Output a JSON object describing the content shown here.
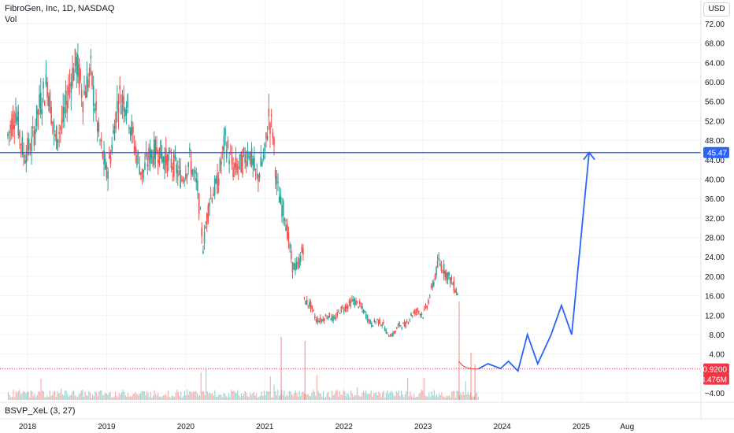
{
  "header": {
    "symbol_line": "FibroGen, Inc, 1D, NASDAQ",
    "volume_label": "Vol",
    "currency": "USD"
  },
  "indicator": {
    "label": "BSVP_XeL (3, 27)"
  },
  "colors": {
    "up": "#26a69a",
    "down": "#ef5350",
    "projection": "#2962ff",
    "hline": "#2962ff",
    "last_price": "#f23645",
    "grid": "#f0f3fa",
    "axis_text": "#131722"
  },
  "chart_data": {
    "type": "line",
    "title": "FibroGen, Inc, 1D, NASDAQ",
    "y_axis_ticks": [
      "72.00",
      "68.00",
      "64.00",
      "60.00",
      "56.00",
      "52.00",
      "48.00",
      "44.00",
      "40.00",
      "36.00",
      "32.00",
      "28.00",
      "24.00",
      "20.00",
      "16.00",
      "12.00",
      "8.00",
      "4.00",
      "−4.00"
    ],
    "y_axis_tick_values": [
      72,
      68,
      64,
      60,
      56,
      52,
      48,
      44,
      40,
      36,
      32,
      28,
      24,
      20,
      16,
      12,
      8,
      4,
      -4
    ],
    "x_axis_ticks": [
      "2018",
      "2019",
      "2020",
      "2021",
      "2022",
      "2023",
      "2024",
      "2025",
      "Aug"
    ],
    "x_axis_tick_values": [
      2018.0,
      2019.0,
      2020.0,
      2021.0,
      2022.0,
      2023.0,
      2024.0,
      2025.0,
      2025.58
    ],
    "ylim": [
      -4,
      74
    ],
    "xlim": [
      2017.75,
      2026.5
    ],
    "price_series": {
      "name": "",
      "x": [
        2017.75,
        2017.85,
        2017.95,
        2018.05,
        2018.15,
        2018.25,
        2018.35,
        2018.45,
        2018.55,
        2018.62,
        2018.7,
        2018.8,
        2018.9,
        2019.0,
        2019.05,
        2019.15,
        2019.25,
        2019.35,
        2019.45,
        2019.55,
        2019.65,
        2019.75,
        2019.85,
        2019.95,
        2020.05,
        2020.15,
        2020.22,
        2020.3,
        2020.4,
        2020.5,
        2020.6,
        2020.7,
        2020.8,
        2020.9,
        2021.0,
        2021.05,
        2021.1,
        2021.15,
        2021.2,
        2021.25,
        2021.35,
        2021.42,
        2021.5
      ],
      "y": [
        49,
        54,
        45,
        47,
        55,
        60,
        48,
        52,
        61,
        64,
        57,
        62,
        49,
        41,
        45,
        57,
        56,
        47,
        41,
        45,
        46,
        44,
        43,
        40,
        44,
        38,
        26,
        36,
        39,
        48,
        42,
        43,
        46,
        40,
        45,
        53,
        50,
        39,
        35,
        33,
        22,
        22,
        27
      ]
    },
    "price_series_2": {
      "x": [
        2022.5,
        2022.55,
        2022.62,
        2022.7,
        2022.78,
        2022.85,
        2022.93,
        2023.0,
        2023.05,
        2023.12,
        2023.2,
        2023.28,
        2023.36,
        2023.45
      ],
      "y": [
        10,
        8,
        8,
        10,
        10,
        12,
        13,
        12,
        14,
        18,
        23,
        21,
        19,
        16
      ]
    },
    "price_series_0": {
      "x": [
        2021.5,
        2021.58,
        2021.65,
        2021.72,
        2021.8,
        2021.88,
        2021.95,
        2022.05,
        2022.12,
        2022.2,
        2022.28,
        2022.35,
        2022.42,
        2022.5
      ],
      "y": [
        15,
        14,
        11,
        11,
        12,
        11,
        13,
        14,
        15,
        14,
        12,
        10,
        11,
        10
      ]
    },
    "price_series_3": {
      "x": [
        2023.45,
        2023.5,
        2023.55,
        2023.62,
        2023.7
      ],
      "y": [
        2.5,
        1.6,
        1.2,
        0.95,
        0.92
      ]
    },
    "projection": {
      "x": [
        2023.7,
        2023.82,
        2023.98,
        2024.08,
        2024.2,
        2024.32,
        2024.45,
        2024.62,
        2024.75,
        2024.88,
        2025.1
      ],
      "y": [
        0.92,
        2.0,
        1.0,
        2.5,
        0.5,
        8.0,
        2.0,
        8.0,
        14.0,
        8.0,
        45.47
      ]
    },
    "horizontal_line": 45.47,
    "price_labels": [
      "45.47",
      "0.9200",
      "8.476M"
    ],
    "last_price": 0.92,
    "volume_label_value": "8.476M",
    "grid": true
  }
}
